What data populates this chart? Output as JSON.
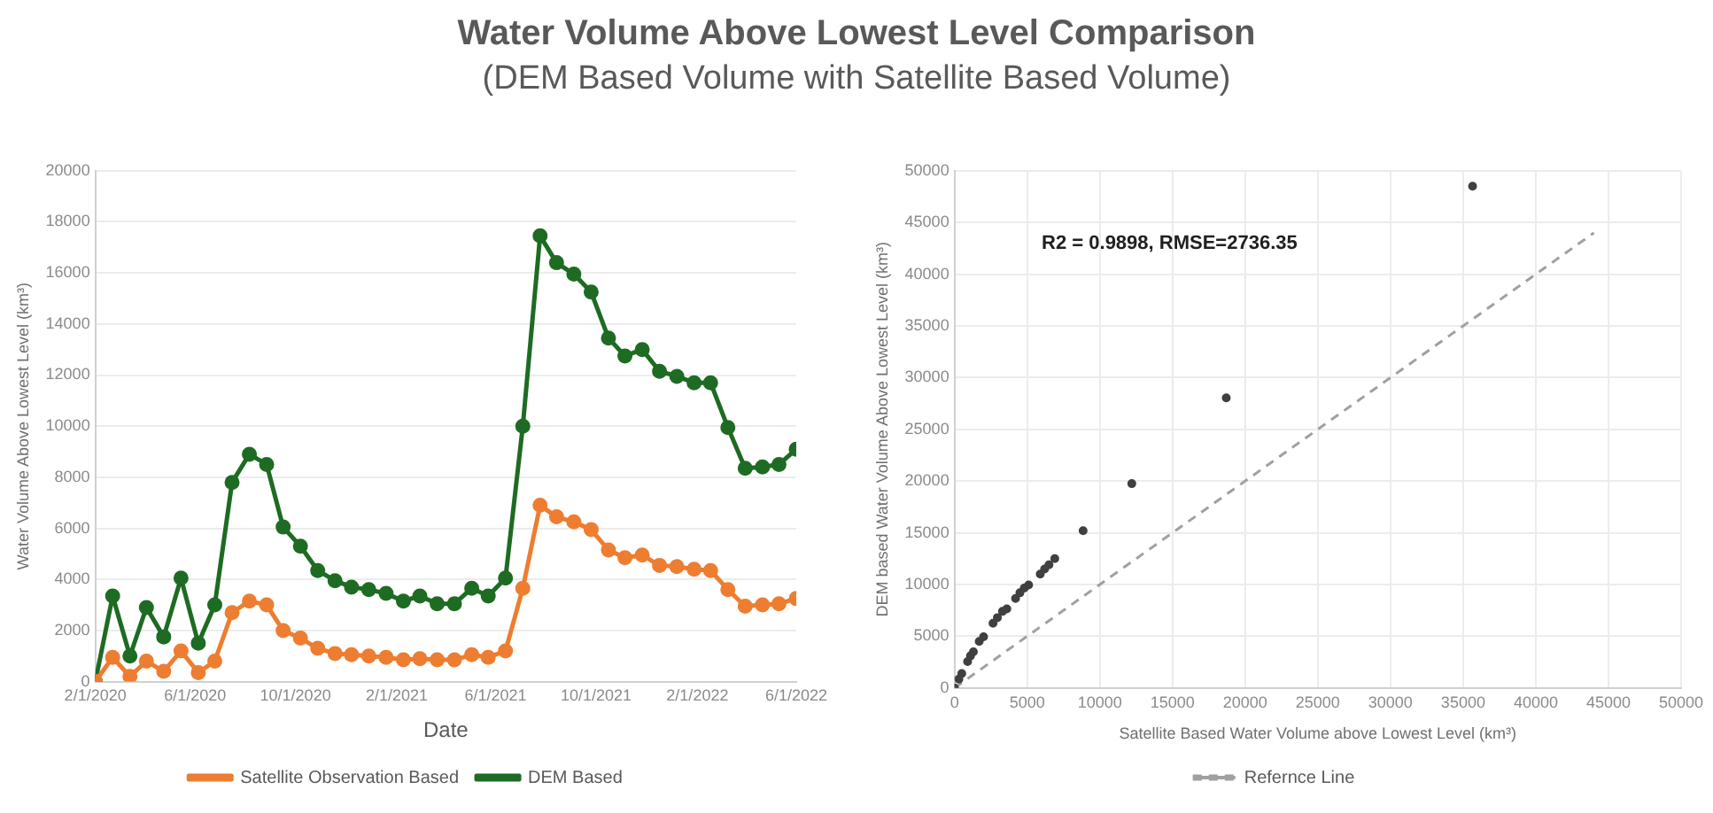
{
  "chart_data": [
    {
      "type": "line",
      "title": "Water Volume Above Lowest Level Comparison",
      "subtitle": "(DEM Based Volume with Satellite Based Volume)",
      "xlabel": "Date",
      "ylabel": "Water Volume Above Lowest Level (km³)",
      "x": [
        "2020-02-01",
        "2020-02-22",
        "2020-03-14",
        "2020-04-03",
        "2020-04-24",
        "2020-05-15",
        "2020-06-05",
        "2020-06-25",
        "2020-07-16",
        "2020-08-06",
        "2020-08-27",
        "2020-09-16",
        "2020-10-07",
        "2020-10-28",
        "2020-11-18",
        "2020-12-08",
        "2020-12-29",
        "2021-01-19",
        "2021-02-09",
        "2021-03-01",
        "2021-03-22",
        "2021-04-12",
        "2021-05-03",
        "2021-05-23",
        "2021-06-13",
        "2021-07-04",
        "2021-07-25",
        "2021-08-14",
        "2021-09-04",
        "2021-09-25",
        "2021-10-16",
        "2021-11-05",
        "2021-11-26",
        "2021-12-17",
        "2022-01-07",
        "2022-01-28",
        "2022-02-17",
        "2022-03-10",
        "2022-03-31",
        "2022-04-21",
        "2022-05-11",
        "2022-06-01"
      ],
      "series": [
        {
          "name": "Satellite Observation Based",
          "color": "#ed7d31",
          "values": [
            0,
            950,
            200,
            800,
            400,
            1200,
            350,
            800,
            2700,
            3150,
            3000,
            2000,
            1700,
            1300,
            1100,
            1050,
            1000,
            950,
            850,
            900,
            850,
            850,
            1050,
            950,
            1200,
            3650,
            6900,
            6450,
            6250,
            5950,
            5150,
            4850,
            4950,
            4550,
            4500,
            4400,
            4350,
            3600,
            2950,
            3000,
            3050,
            3250
          ]
        },
        {
          "name": "DEM Based",
          "color": "#1e6b23",
          "values": [
            0,
            3350,
            1000,
            2900,
            1750,
            4050,
            1500,
            3000,
            7800,
            8900,
            8500,
            6050,
            5300,
            4350,
            3950,
            3700,
            3600,
            3450,
            3150,
            3350,
            3050,
            3050,
            3650,
            3350,
            4050,
            10000,
            17450,
            16400,
            15950,
            15250,
            13450,
            12750,
            13000,
            12150,
            11950,
            11700,
            11700,
            9950,
            8350,
            8400,
            8500,
            9100
          ]
        }
      ],
      "xlim": [
        "2020-02-01",
        "2022-06-01"
      ],
      "xticks": [
        {
          "value": "2020-02-01",
          "label": "2/1/2020"
        },
        {
          "value": "2020-06-01",
          "label": "6/1/2020"
        },
        {
          "value": "2020-10-01",
          "label": "10/1/2020"
        },
        {
          "value": "2021-02-01",
          "label": "2/1/2021"
        },
        {
          "value": "2021-06-01",
          "label": "6/1/2021"
        },
        {
          "value": "2021-10-01",
          "label": "10/1/2021"
        },
        {
          "value": "2022-02-01",
          "label": "2/1/2022"
        },
        {
          "value": "2022-06-01",
          "label": "6/1/2022"
        }
      ],
      "ylim": [
        0,
        20000
      ],
      "yticks": [
        0,
        2000,
        4000,
        6000,
        8000,
        10000,
        12000,
        14000,
        16000,
        18000,
        20000
      ],
      "grid": "y",
      "legend": "bottom",
      "marker": "circle",
      "line_style": "solid"
    },
    {
      "type": "scatter",
      "xlabel": "Satellite Based Water Volume above Lowest Level (km³)",
      "ylabel": "DEM based Water Volume Above Lowest Level (km³)",
      "annotations": [
        "R2 = 0.9898, RMSE=2736.35"
      ],
      "series": [
        {
          "color": "#404040",
          "marker": "circle",
          "x": [
            0,
            300,
            500,
            900,
            1100,
            1300,
            1700,
            2000,
            2650,
            2950,
            3300,
            3600,
            4200,
            4500,
            4800,
            5100,
            5900,
            6200,
            6500,
            6900,
            8850,
            12200,
            18700,
            35650
          ],
          "values": [
            0,
            850,
            1400,
            2550,
            3100,
            3500,
            4500,
            4950,
            6250,
            6800,
            7400,
            7650,
            8650,
            9200,
            9650,
            9950,
            11000,
            11500,
            11900,
            12500,
            15200,
            19750,
            28050,
            48500
          ]
        },
        {
          "name": "Refernce Line",
          "type": "line",
          "color": "#a0a0a0",
          "marker": "none",
          "line_style": "dashed",
          "x": [
            0,
            44000
          ],
          "values": [
            0,
            44000
          ]
        }
      ],
      "xlim": [
        0,
        50000
      ],
      "xticks": [
        0,
        5000,
        10000,
        15000,
        20000,
        25000,
        30000,
        35000,
        40000,
        45000,
        50000
      ],
      "ylim": [
        0,
        50000
      ],
      "yticks": [
        0,
        5000,
        10000,
        15000,
        20000,
        25000,
        30000,
        35000,
        40000,
        45000,
        50000
      ],
      "grid": true,
      "legend": "bottom"
    }
  ]
}
